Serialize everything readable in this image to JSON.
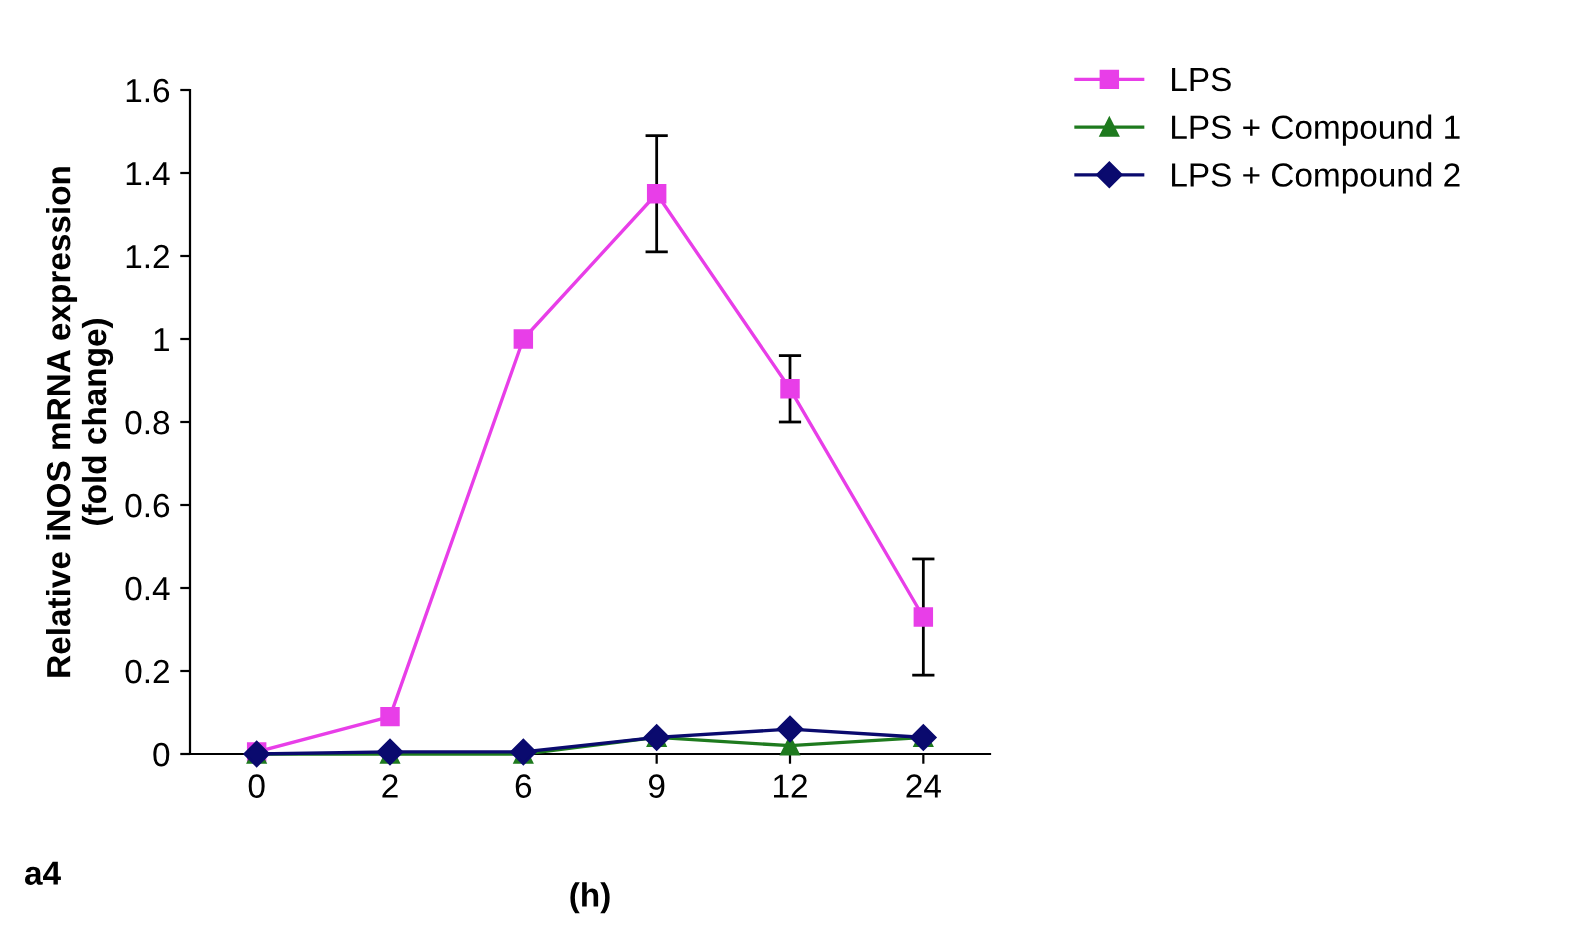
{
  "chart_data": {
    "type": "line",
    "ylabel": "Relative iNOS mRNA expression\n(fold change)",
    "xlabel": "(h)",
    "categories": [
      "0",
      "2",
      "6",
      "9",
      "12",
      "24"
    ],
    "ylim": [
      0,
      1.6
    ],
    "yticks": [
      0,
      0.2,
      0.4,
      0.6,
      0.8,
      1,
      1.2,
      1.4,
      1.6
    ],
    "grid": false,
    "legend": "top right",
    "annotations": [
      "a4"
    ],
    "series": [
      {
        "name": "LPS",
        "color": "#e83ee8",
        "marker": "square",
        "values": [
          0.005,
          0.09,
          1.0,
          1.35,
          0.88,
          0.33
        ],
        "errors": [
          null,
          null,
          null,
          0.14,
          0.08,
          0.14
        ]
      },
      {
        "name": "LPS + Compound 1",
        "color": "#1e7a1e",
        "marker": "triangle",
        "values": [
          0,
          0,
          0,
          0.04,
          0.02,
          0.04
        ]
      },
      {
        "name": "LPS + Compound 2",
        "color": "#0a0a6e",
        "marker": "diamond",
        "values": [
          0,
          0.005,
          0.005,
          0.04,
          0.06,
          0.04
        ]
      }
    ]
  }
}
